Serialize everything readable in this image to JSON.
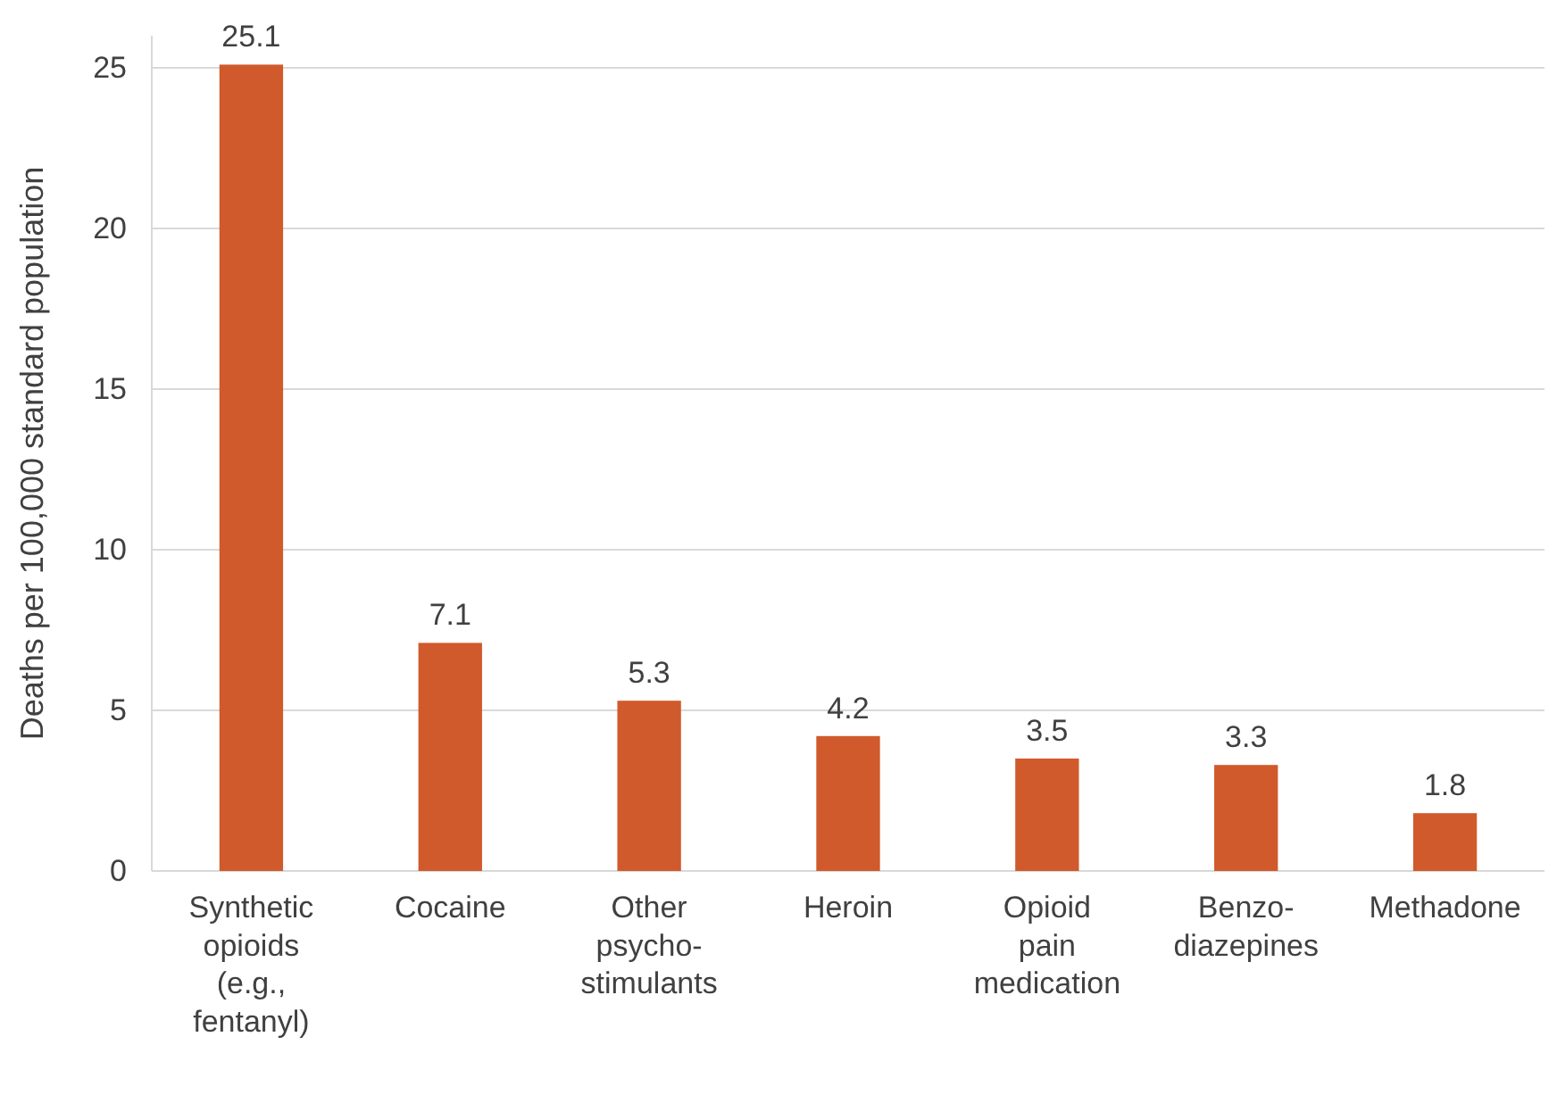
{
  "chart_data": {
    "type": "bar",
    "ylabel": "Deaths per 100,000 standard population",
    "categories": [
      "Synthetic opioids (e.g., fentanyl)",
      "Cocaine",
      "Other psycho-stimulants",
      "Heroin",
      "Opioid pain medication",
      "Benzo-diazepines",
      "Methadone"
    ],
    "values": [
      25.1,
      7.1,
      5.3,
      4.2,
      3.5,
      3.3,
      1.8
    ],
    "color": "#d05a2b",
    "ylim": [
      0,
      26
    ],
    "yticks": [
      0,
      5,
      10,
      15,
      20,
      25
    ],
    "grid": "y",
    "data_labels": true
  }
}
